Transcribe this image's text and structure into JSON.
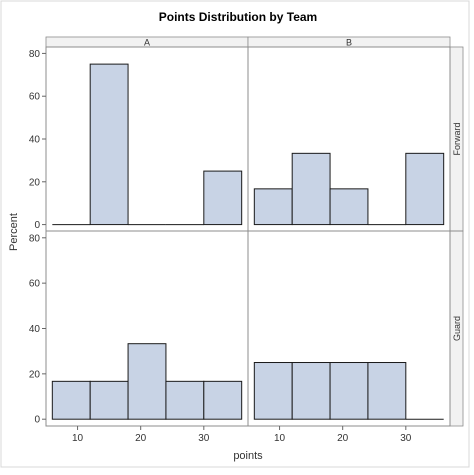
{
  "chart_data": {
    "type": "bar",
    "title": "Points Distribution by Team",
    "xlabel": "points",
    "ylabel": "Percent",
    "columns": [
      "A",
      "B"
    ],
    "rows": [
      "Forward",
      "Guard"
    ],
    "bin_edges": [
      6,
      12,
      18,
      24,
      30,
      36
    ],
    "xticks": [
      10,
      20,
      30
    ],
    "xlim": [
      5,
      37
    ],
    "yticks": [
      0,
      20,
      40,
      60,
      80
    ],
    "ylim": [
      -3,
      83
    ],
    "bar_color": "#c8d3e5",
    "panels": [
      {
        "column": "A",
        "row": "Forward",
        "values": [
          0,
          75,
          0,
          0,
          25
        ]
      },
      {
        "column": "B",
        "row": "Forward",
        "values": [
          16.7,
          33.3,
          16.7,
          0,
          33.3
        ]
      },
      {
        "column": "A",
        "row": "Guard",
        "values": [
          16.7,
          16.7,
          33.3,
          16.7,
          16.7
        ]
      },
      {
        "column": "B",
        "row": "Guard",
        "values": [
          25,
          25,
          25,
          25,
          0
        ]
      }
    ]
  }
}
